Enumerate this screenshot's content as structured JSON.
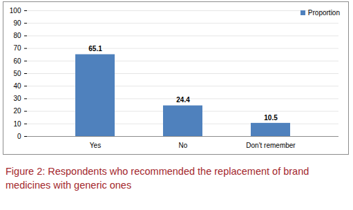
{
  "chart_data": {
    "type": "bar",
    "caption": "Figure 2: Respondents who recommended the replacement of brand medicines with generic ones",
    "categories": [
      "Yes",
      "No",
      "Don't remember"
    ],
    "series": [
      {
        "name": "Proportion",
        "color": "#4f81bd",
        "values": [
          65.1,
          24.4,
          10.5
        ]
      }
    ],
    "ylim": [
      0,
      100
    ],
    "yticks": [
      0,
      10,
      20,
      30,
      40,
      50,
      60,
      70,
      80,
      90,
      100
    ],
    "grid": true,
    "legend": "top-right",
    "data_labels": true
  }
}
